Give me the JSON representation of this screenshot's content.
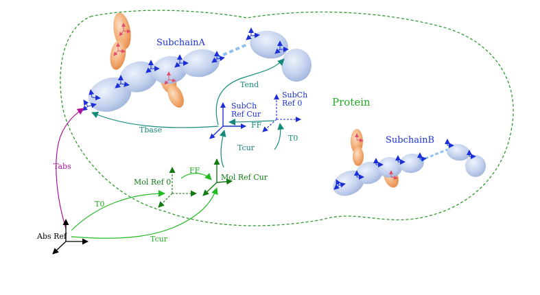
{
  "labels": {
    "subchain_a": "SubchainA",
    "subchain_b": "SubchainB",
    "protein": "Protein",
    "tend": "Tend",
    "tbase": "Tbase",
    "subch_ref_cur_line1": "SubCh",
    "subch_ref_cur_line2": "Ref Cur",
    "subch_ref0_line1": "SubCh",
    "subch_ref0_line2": "Ref 0",
    "ff_sub": "FF",
    "t0_sub": "T0",
    "tcur_sub": "Tcur",
    "tabs": "Tabs",
    "mol_ref0": "Mol Ref 0",
    "ff_mol": "FF",
    "mol_ref_cur": "Mol Ref Cur",
    "t0_abs": "T0",
    "tcur_abs": "Tcur",
    "abs_ref": "Abs Ref"
  },
  "colors": {
    "frame_blue": "#1a2fd6",
    "teal_arrow": "#138a7a",
    "green_arrow": "#22bb22",
    "dark_green_axes": "#127a12",
    "magenta_arrow": "#b0109a",
    "protein_outline": "#2a9a2a",
    "black_axes": "#000000",
    "ellipse_fill": "#c4d2ee",
    "sidechain_fill": "#f3ac74"
  }
}
